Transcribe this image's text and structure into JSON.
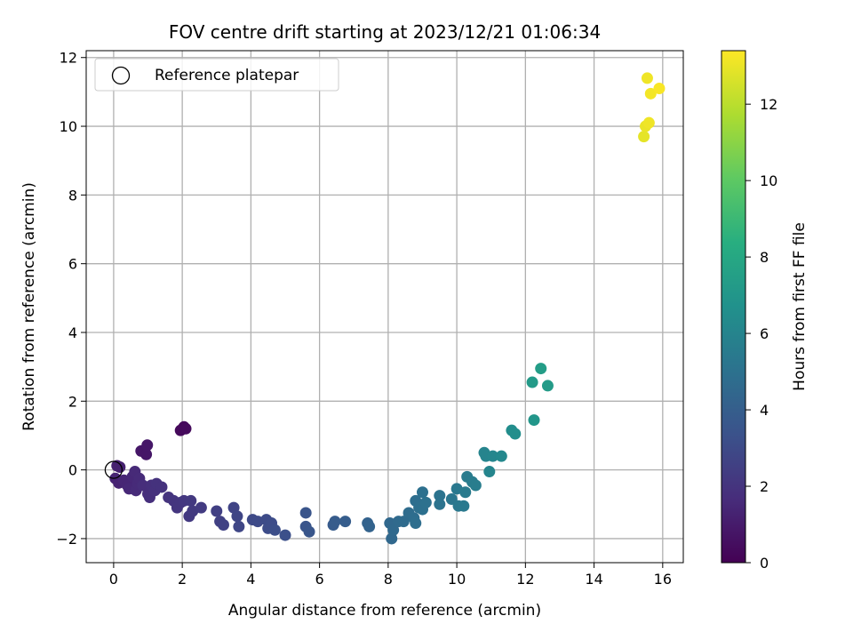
{
  "chart_data": {
    "type": "scatter",
    "title": "FOV centre drift starting at 2023/12/21 01:06:34",
    "xlabel": "Angular distance from reference (arcmin)",
    "ylabel": "Rotation from reference (arcmin)",
    "xlim": [
      -0.8,
      16.6
    ],
    "ylim": [
      -2.7,
      12.2
    ],
    "xticks": [
      0,
      2,
      4,
      6,
      8,
      10,
      12,
      14,
      16
    ],
    "yticks": [
      -2,
      0,
      2,
      4,
      6,
      8,
      10,
      12
    ],
    "grid": true,
    "legend": {
      "position": "top-left",
      "entries": [
        "Reference platepar"
      ]
    },
    "reference_point": {
      "x": 0,
      "y": 0
    },
    "colorbar": {
      "label": "Hours from first FF file",
      "range": [
        0,
        13.4
      ],
      "ticks": [
        0,
        2,
        4,
        6,
        8,
        10,
        12
      ],
      "colormap": "viridis"
    },
    "points": [
      {
        "x": 1.95,
        "y": 1.15,
        "c": 0.3
      },
      {
        "x": 2.05,
        "y": 1.25,
        "c": 0.3
      },
      {
        "x": 2.1,
        "y": 1.2,
        "c": 0.35
      },
      {
        "x": 0.8,
        "y": 0.55,
        "c": 0.8
      },
      {
        "x": 0.95,
        "y": 0.45,
        "c": 0.8
      },
      {
        "x": 0.98,
        "y": 0.72,
        "c": 0.85
      },
      {
        "x": 0.1,
        "y": 0.12,
        "c": 1.2
      },
      {
        "x": 0.18,
        "y": 0.08,
        "c": 1.2
      },
      {
        "x": 0.05,
        "y": -0.25,
        "c": 1.3
      },
      {
        "x": 0.15,
        "y": -0.38,
        "c": 1.3
      },
      {
        "x": 0.3,
        "y": -0.3,
        "c": 1.4
      },
      {
        "x": 0.4,
        "y": -0.45,
        "c": 1.4
      },
      {
        "x": 0.45,
        "y": -0.55,
        "c": 1.5
      },
      {
        "x": 0.55,
        "y": -0.2,
        "c": 1.5
      },
      {
        "x": 0.62,
        "y": -0.05,
        "c": 1.55
      },
      {
        "x": 0.65,
        "y": -0.6,
        "c": 1.6
      },
      {
        "x": 0.7,
        "y": -0.4,
        "c": 1.6
      },
      {
        "x": 0.75,
        "y": -0.25,
        "c": 1.6
      },
      {
        "x": 0.85,
        "y": -0.45,
        "c": 1.7
      },
      {
        "x": 1.0,
        "y": -0.7,
        "c": 1.7
      },
      {
        "x": 1.05,
        "y": -0.8,
        "c": 1.75
      },
      {
        "x": 1.1,
        "y": -0.45,
        "c": 1.8
      },
      {
        "x": 1.2,
        "y": -0.6,
        "c": 1.85
      },
      {
        "x": 1.25,
        "y": -0.4,
        "c": 1.9
      },
      {
        "x": 1.4,
        "y": -0.5,
        "c": 1.9
      },
      {
        "x": 1.6,
        "y": -0.8,
        "c": 2.0
      },
      {
        "x": 1.75,
        "y": -0.9,
        "c": 2.05
      },
      {
        "x": 1.85,
        "y": -1.1,
        "c": 2.1
      },
      {
        "x": 1.95,
        "y": -0.95,
        "c": 2.1
      },
      {
        "x": 2.05,
        "y": -0.9,
        "c": 2.15
      },
      {
        "x": 2.2,
        "y": -1.35,
        "c": 2.2
      },
      {
        "x": 2.25,
        "y": -0.9,
        "c": 2.2
      },
      {
        "x": 2.3,
        "y": -1.2,
        "c": 2.25
      },
      {
        "x": 2.55,
        "y": -1.1,
        "c": 2.3
      },
      {
        "x": 3.0,
        "y": -1.2,
        "c": 2.5
      },
      {
        "x": 3.1,
        "y": -1.5,
        "c": 2.55
      },
      {
        "x": 3.2,
        "y": -1.6,
        "c": 2.6
      },
      {
        "x": 3.5,
        "y": -1.1,
        "c": 2.7
      },
      {
        "x": 3.6,
        "y": -1.35,
        "c": 2.75
      },
      {
        "x": 3.65,
        "y": -1.65,
        "c": 2.8
      },
      {
        "x": 4.05,
        "y": -1.45,
        "c": 2.95
      },
      {
        "x": 4.2,
        "y": -1.5,
        "c": 3.0
      },
      {
        "x": 4.45,
        "y": -1.45,
        "c": 3.05
      },
      {
        "x": 4.5,
        "y": -1.7,
        "c": 3.1
      },
      {
        "x": 4.6,
        "y": -1.55,
        "c": 3.1
      },
      {
        "x": 4.7,
        "y": -1.75,
        "c": 3.15
      },
      {
        "x": 5.0,
        "y": -1.9,
        "c": 3.25
      },
      {
        "x": 5.6,
        "y": -1.25,
        "c": 3.5
      },
      {
        "x": 5.6,
        "y": -1.65,
        "c": 3.5
      },
      {
        "x": 5.7,
        "y": -1.8,
        "c": 3.55
      },
      {
        "x": 6.4,
        "y": -1.6,
        "c": 3.8
      },
      {
        "x": 6.45,
        "y": -1.5,
        "c": 3.85
      },
      {
        "x": 6.75,
        "y": -1.5,
        "c": 3.95
      },
      {
        "x": 7.4,
        "y": -1.55,
        "c": 4.2
      },
      {
        "x": 7.45,
        "y": -1.65,
        "c": 4.25
      },
      {
        "x": 8.05,
        "y": -1.55,
        "c": 4.5
      },
      {
        "x": 8.1,
        "y": -2.0,
        "c": 4.5
      },
      {
        "x": 8.15,
        "y": -1.75,
        "c": 4.55
      },
      {
        "x": 8.3,
        "y": -1.5,
        "c": 4.6
      },
      {
        "x": 8.45,
        "y": -1.5,
        "c": 4.65
      },
      {
        "x": 8.6,
        "y": -1.25,
        "c": 4.7
      },
      {
        "x": 8.75,
        "y": -1.4,
        "c": 4.75
      },
      {
        "x": 8.8,
        "y": -0.9,
        "c": 4.8
      },
      {
        "x": 8.8,
        "y": -1.55,
        "c": 4.8
      },
      {
        "x": 8.9,
        "y": -1.1,
        "c": 4.85
      },
      {
        "x": 9.0,
        "y": -0.65,
        "c": 4.9
      },
      {
        "x": 9.0,
        "y": -1.15,
        "c": 4.9
      },
      {
        "x": 9.1,
        "y": -0.95,
        "c": 4.95
      },
      {
        "x": 9.5,
        "y": -0.75,
        "c": 5.1
      },
      {
        "x": 9.5,
        "y": -1.0,
        "c": 5.1
      },
      {
        "x": 9.85,
        "y": -0.85,
        "c": 5.25
      },
      {
        "x": 10.0,
        "y": -0.55,
        "c": 5.35
      },
      {
        "x": 10.05,
        "y": -1.05,
        "c": 5.35
      },
      {
        "x": 10.2,
        "y": -1.05,
        "c": 5.4
      },
      {
        "x": 10.25,
        "y": -0.65,
        "c": 5.45
      },
      {
        "x": 10.3,
        "y": -0.2,
        "c": 5.5
      },
      {
        "x": 10.45,
        "y": -0.35,
        "c": 5.55
      },
      {
        "x": 10.55,
        "y": -0.45,
        "c": 5.6
      },
      {
        "x": 10.8,
        "y": 0.5,
        "c": 6.0
      },
      {
        "x": 10.85,
        "y": 0.4,
        "c": 6.0
      },
      {
        "x": 10.95,
        "y": -0.05,
        "c": 6.05
      },
      {
        "x": 11.05,
        "y": 0.4,
        "c": 6.1
      },
      {
        "x": 11.3,
        "y": 0.4,
        "c": 6.2
      },
      {
        "x": 11.6,
        "y": 1.15,
        "c": 6.5
      },
      {
        "x": 11.7,
        "y": 1.05,
        "c": 6.55
      },
      {
        "x": 12.2,
        "y": 2.55,
        "c": 7.2
      },
      {
        "x": 12.25,
        "y": 1.45,
        "c": 7.0
      },
      {
        "x": 12.45,
        "y": 2.95,
        "c": 7.4
      },
      {
        "x": 12.65,
        "y": 2.45,
        "c": 7.3
      },
      {
        "x": 15.45,
        "y": 9.7,
        "c": 12.9
      },
      {
        "x": 15.5,
        "y": 10.0,
        "c": 13.0
      },
      {
        "x": 15.55,
        "y": 11.4,
        "c": 13.1
      },
      {
        "x": 15.6,
        "y": 10.1,
        "c": 13.1
      },
      {
        "x": 15.65,
        "y": 10.95,
        "c": 13.2
      },
      {
        "x": 15.9,
        "y": 11.1,
        "c": 13.3
      }
    ]
  }
}
